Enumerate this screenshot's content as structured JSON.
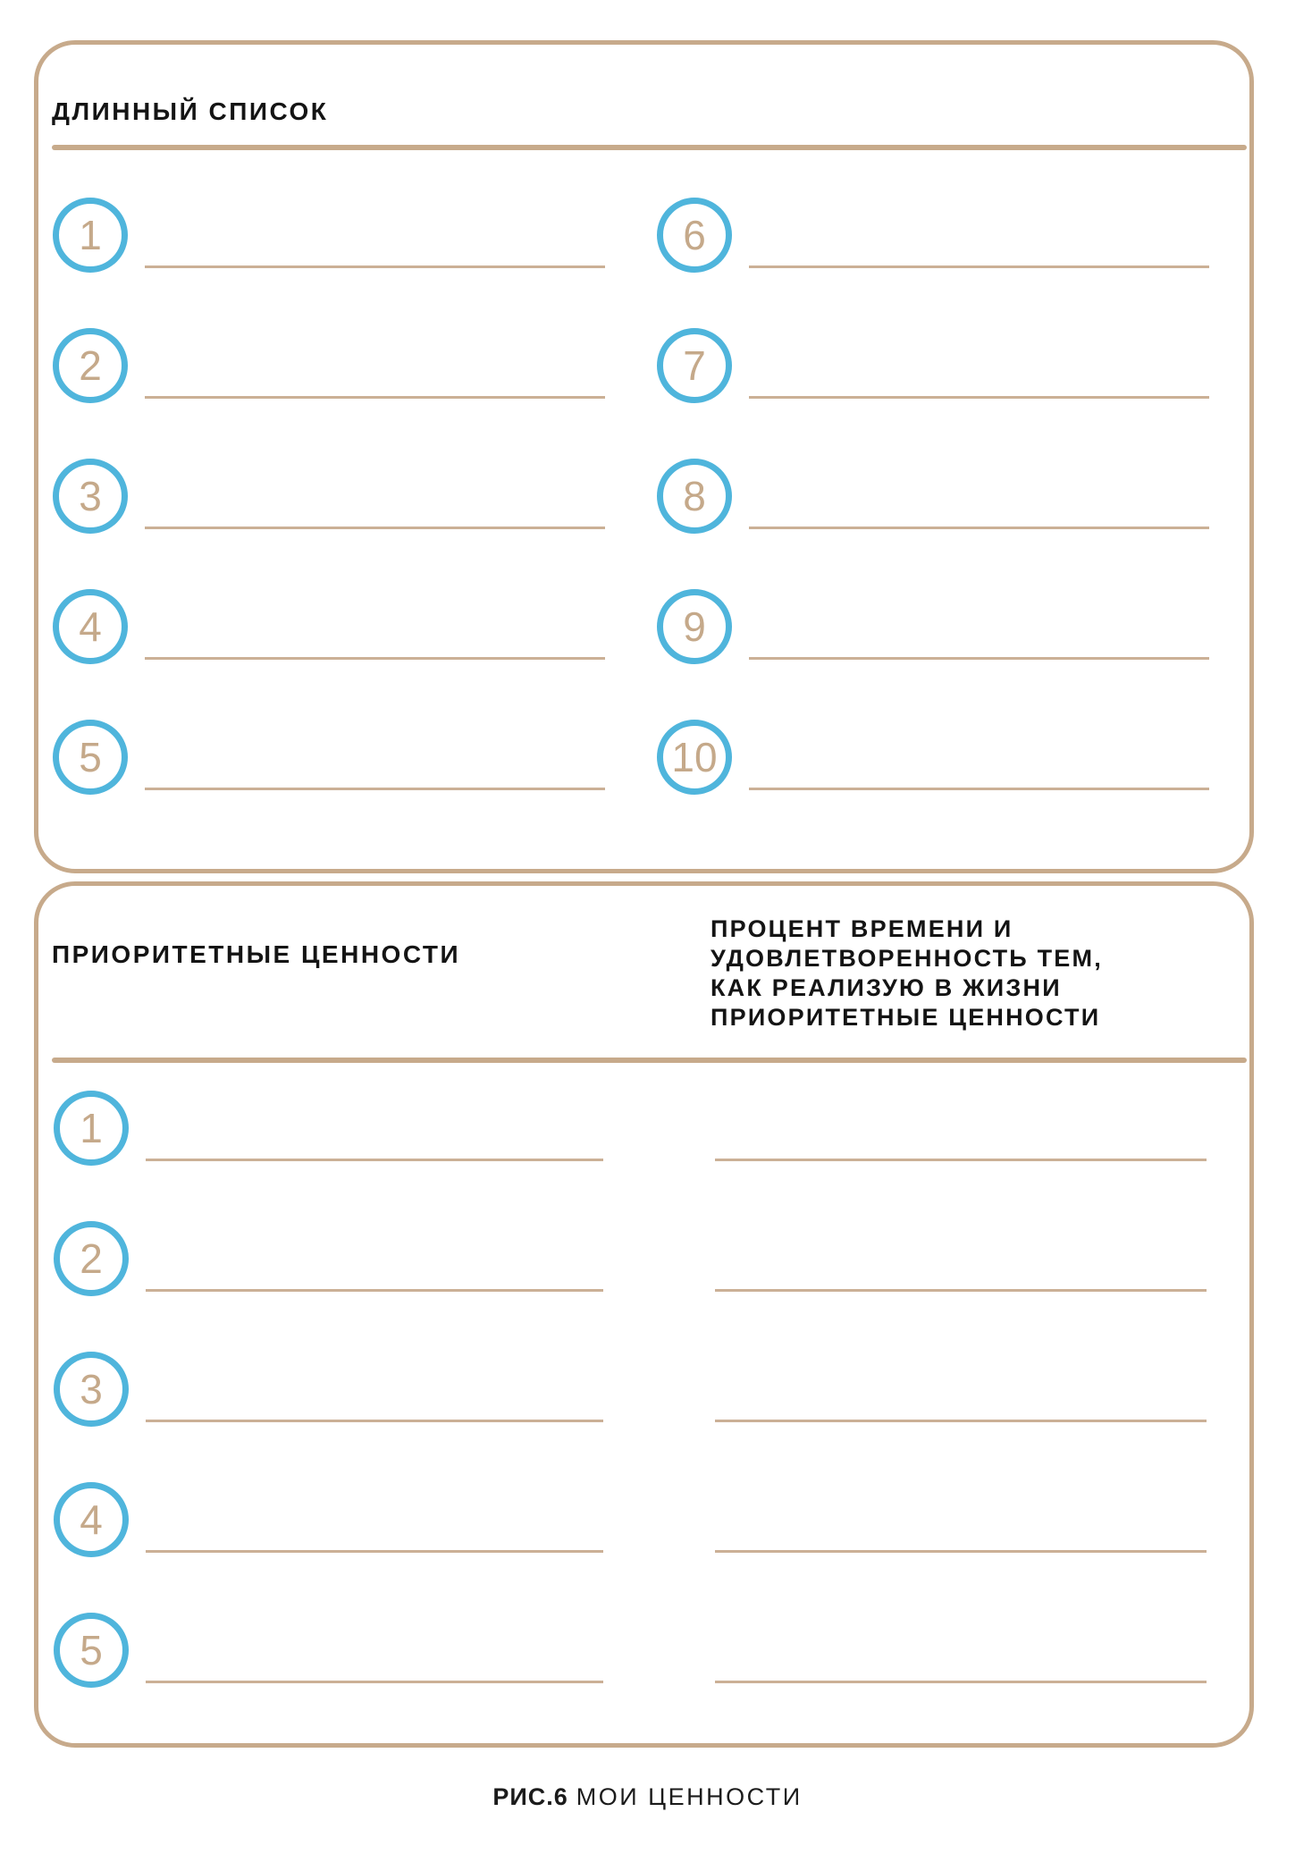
{
  "page": {
    "background": "#ffffff",
    "accent_tan": "#c7aa8b",
    "accent_blue": "#4fb5dc",
    "number_color": "#c5a98a",
    "text_color": "#141414"
  },
  "long_list": {
    "title": "ДЛИННЫЙ СПИСОК",
    "items": [
      {
        "number": "1"
      },
      {
        "number": "2"
      },
      {
        "number": "3"
      },
      {
        "number": "4"
      },
      {
        "number": "5"
      },
      {
        "number": "6"
      },
      {
        "number": "7"
      },
      {
        "number": "8"
      },
      {
        "number": "9"
      },
      {
        "number": "10"
      }
    ]
  },
  "priorities": {
    "left_title": "ПРИОРИТЕТНЫЕ ЦЕННОСТИ",
    "right_title_lines": [
      "ПРОЦЕНТ ВРЕМЕНИ И",
      "УДОВЛЕТВОРЕННОСТЬ ТЕМ,",
      "КАК РЕАЛИЗУЮ В ЖИЗНИ",
      "ПРИОРИТЕТНЫЕ ЦЕННОСТИ"
    ],
    "items": [
      {
        "number": "1"
      },
      {
        "number": "2"
      },
      {
        "number": "3"
      },
      {
        "number": "4"
      },
      {
        "number": "5"
      }
    ]
  },
  "footer": {
    "figure_label": "РИС.6",
    "caption": "МОИ ЦЕННОСТИ"
  }
}
